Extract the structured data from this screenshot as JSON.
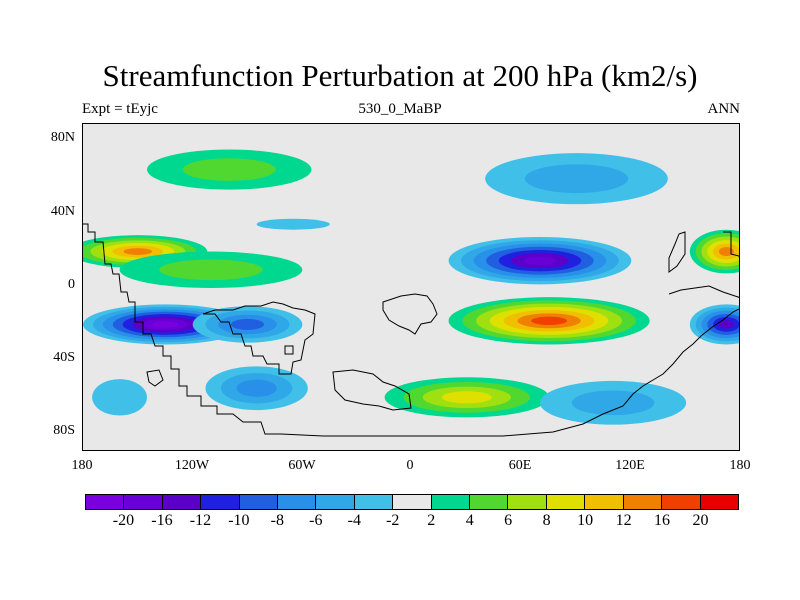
{
  "title": "Streamfunction Perturbation at 200 hPa (km2/s)",
  "subtitle_left": "Expt = tEyjc",
  "subtitle_center": "530_0_MaBP",
  "subtitle_right": "ANN",
  "y_ticks": [
    "80N",
    "40N",
    "0",
    "40S",
    "80S"
  ],
  "x_ticks": [
    "180",
    "120W",
    "60W",
    "0",
    "60E",
    "120E",
    "180"
  ],
  "colorbar": {
    "colors": [
      "#7a00e0",
      "#6a00d8",
      "#5a00c8",
      "#2020e0",
      "#2060e0",
      "#2890e8",
      "#30a8e8",
      "#40c0e8",
      "#e8e8e8",
      "#00d890",
      "#50d830",
      "#a0e010",
      "#e0e000",
      "#f0c000",
      "#f08000",
      "#f04000",
      "#e80000"
    ],
    "labels": [
      "-20",
      "-16",
      "-12",
      "-10",
      "-8",
      "-6",
      "-4",
      "-2",
      "2",
      "4",
      "6",
      "8",
      "10",
      "12",
      "16",
      "20"
    ]
  },
  "chart_data": {
    "type": "heatmap",
    "title": "Streamfunction Perturbation at 200 hPa (km2/s)",
    "x_range": [
      -180,
      180
    ],
    "y_range": [
      -90,
      90
    ],
    "levels": [
      -20,
      -16,
      -12,
      -10,
      -8,
      -6,
      -4,
      -2,
      2,
      4,
      6,
      8,
      10,
      12,
      16,
      20
    ],
    "features": [
      {
        "lon": -150,
        "lat": 20,
        "value": 14,
        "lon_radius": 38,
        "lat_radius": 9
      },
      {
        "lon": -110,
        "lat": 10,
        "value": 5,
        "lon_radius": 50,
        "lat_radius": 10
      },
      {
        "lon": -135,
        "lat": -20,
        "value": -20,
        "lon_radius": 45,
        "lat_radius": 11
      },
      {
        "lon": -90,
        "lat": -20,
        "value": -8,
        "lon_radius": 30,
        "lat_radius": 10
      },
      {
        "lon": -100,
        "lat": 65,
        "value": 5,
        "lon_radius": 45,
        "lat_radius": 11
      },
      {
        "lon": -65,
        "lat": 35,
        "value": -2,
        "lon_radius": 20,
        "lat_radius": 3
      },
      {
        "lon": -85,
        "lat": -55,
        "value": -6,
        "lon_radius": 28,
        "lat_radius": 12
      },
      {
        "lon": -160,
        "lat": -60,
        "value": -3,
        "lon_radius": 15,
        "lat_radius": 10
      },
      {
        "lon": 70,
        "lat": 15,
        "value": -18,
        "lon_radius": 50,
        "lat_radius": 13
      },
      {
        "lon": 90,
        "lat": 60,
        "value": -5,
        "lon_radius": 50,
        "lat_radius": 14
      },
      {
        "lon": 75,
        "lat": -18,
        "value": 17,
        "lon_radius": 55,
        "lat_radius": 13
      },
      {
        "lon": 30,
        "lat": -60,
        "value": 8,
        "lon_radius": 45,
        "lat_radius": 11
      },
      {
        "lon": 110,
        "lat": -63,
        "value": -5,
        "lon_radius": 40,
        "lat_radius": 12
      },
      {
        "lon": 172,
        "lat": 20,
        "value": 14,
        "lon_radius": 20,
        "lat_radius": 12
      },
      {
        "lon": 172,
        "lat": -20,
        "value": -14,
        "lon_radius": 20,
        "lat_radius": 11
      }
    ]
  }
}
